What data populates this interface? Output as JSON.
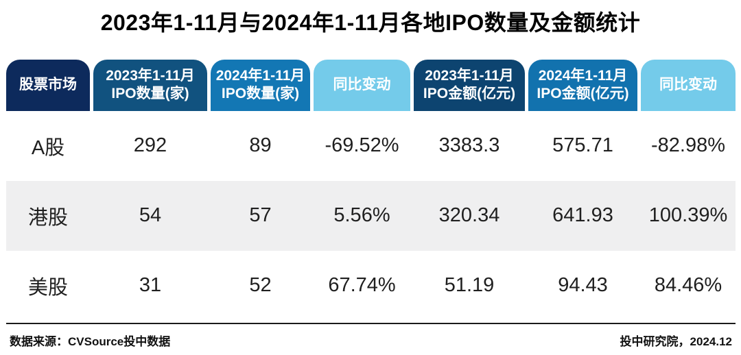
{
  "title": "2023年1-11月与2024年1-11月各地IPO数量及金额统计",
  "table": {
    "headers": [
      {
        "line1": "股票市场",
        "line2": "",
        "color": "#0d2a5c"
      },
      {
        "line1": "2023年1-11月",
        "line2": "IPO数量(家)",
        "color": "#11527f"
      },
      {
        "line1": "2024年1-11月",
        "line2": "IPO数量(家)",
        "color": "#1377b4"
      },
      {
        "line1": "同比变动",
        "line2": "",
        "color": "#74cbea"
      },
      {
        "line1": "2023年1-11月",
        "line2": "IPO金额(亿元)",
        "color": "#0d4470"
      },
      {
        "line1": "2024年1-11月",
        "line2": "IPO金额(亿元)",
        "color": "#1272ae"
      },
      {
        "line1": "同比变动",
        "line2": "",
        "color": "#74cbea"
      }
    ],
    "rows": [
      {
        "market": "A股",
        "count_2023": "292",
        "count_2024": "89",
        "count_change": "-69.52%",
        "amount_2023": "3383.3",
        "amount_2024": "575.71",
        "amount_change": "-82.98%"
      },
      {
        "market": "港股",
        "count_2023": "54",
        "count_2024": "57",
        "count_change": "5.56%",
        "amount_2023": "320.34",
        "amount_2024": "641.93",
        "amount_change": "100.39%"
      },
      {
        "market": "美股",
        "count_2023": "31",
        "count_2024": "52",
        "count_change": "67.74%",
        "amount_2023": "51.19",
        "amount_2024": "94.43",
        "amount_change": "84.46%"
      }
    ]
  },
  "footer": {
    "source": "数据来源：CVSource投中数据",
    "credit": "投中研究院，2024.12"
  },
  "colors": {
    "header_market": "#0d2a5c",
    "header_2023_count": "#11527f",
    "header_2024_count": "#1377b4",
    "header_change": "#74cbea",
    "header_2023_amount": "#0d4470",
    "header_2024_amount": "#1272ae",
    "row_alt_gray": "#efeff0",
    "header_text": "#ffffff",
    "body_text": "#1f1f1f"
  },
  "chart_data": {
    "type": "table",
    "title": "2023年1-11月与2024年1-11月各地IPO数量及金额统计",
    "columns": [
      "股票市场",
      "2023年1-11月IPO数量(家)",
      "2024年1-11月IPO数量(家)",
      "同比变动",
      "2023年1-11月IPO金额(亿元)",
      "2024年1-11月IPO金额(亿元)",
      "同比变动"
    ],
    "rows": [
      [
        "A股",
        292,
        89,
        "-69.52%",
        3383.3,
        575.71,
        "-82.98%"
      ],
      [
        "港股",
        54,
        57,
        "5.56%",
        320.34,
        641.93,
        "100.39%"
      ],
      [
        "美股",
        31,
        52,
        "67.74%",
        51.19,
        94.43,
        "84.46%"
      ]
    ],
    "source": "数据来源：CVSource投中数据",
    "credit": "投中研究院，2024.12"
  }
}
